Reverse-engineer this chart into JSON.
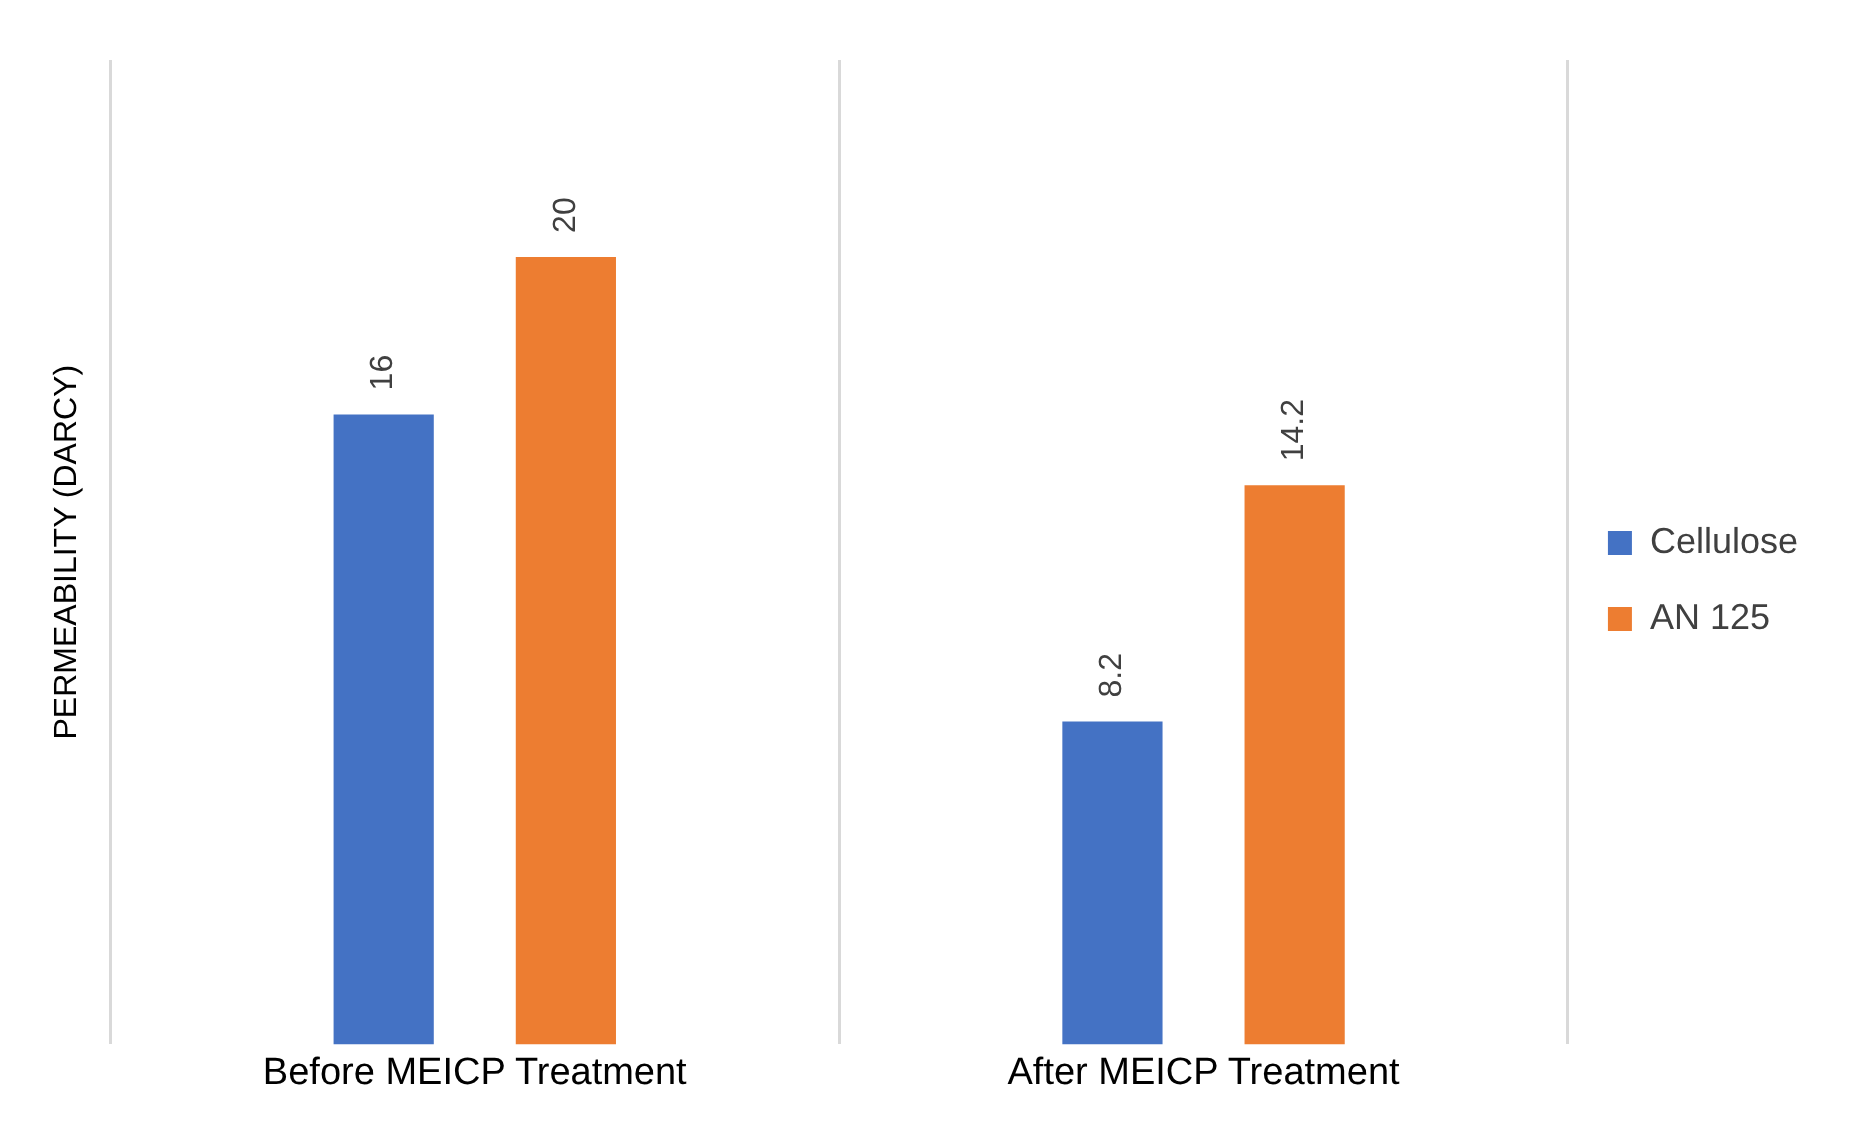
{
  "chart_data": {
    "type": "bar",
    "ylabel": "PERMEABILITY (DARCY)",
    "categories": [
      "Before MEICP Treatment",
      "After MEICP Treatment"
    ],
    "series": [
      {
        "name": "Cellulose",
        "color": "#4472c4",
        "values": [
          16,
          8.2
        ]
      },
      {
        "name": "AN 125",
        "color": "#ed7d31",
        "values": [
          20,
          14.2
        ]
      }
    ],
    "ylim": [
      0,
      25
    ],
    "grid": "x",
    "legend": "right",
    "data_labels": true,
    "tick_labels": "x"
  }
}
